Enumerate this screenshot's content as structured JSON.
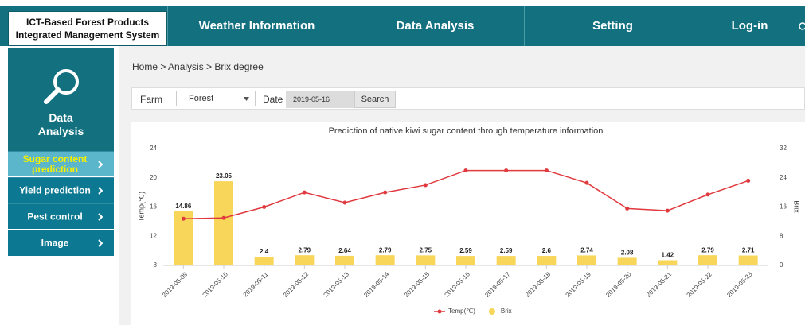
{
  "header": {
    "title_lines": [
      "ICT-Based Forest Products",
      "Integrated Management System"
    ],
    "nav": [
      "Weather Information",
      "Data Analysis",
      "Setting",
      "Log-in"
    ]
  },
  "sidebar": {
    "title_lines": [
      "Data",
      "Analysis"
    ],
    "menu": [
      "Sugar content prediction",
      "Yield prediction",
      "Pest control",
      "Image"
    ]
  },
  "breadcrumb": "Home > Analysis > Brix degree",
  "filter": {
    "farm_label": "Farm",
    "farm_value": "Forest",
    "date_label": "Date",
    "date_value": "2019-05-16",
    "button": "Search"
  },
  "chart_data": {
    "type": "combo",
    "title": "Prediction of native kiwi sugar content through temperature information",
    "categories": [
      "2019-05-09",
      "2019-05-10",
      "2019-05-11",
      "2019-05-12",
      "2019-05-13",
      "2019-05-14",
      "2019-05-15",
      "2019-05-16",
      "2019-05-17",
      "2019-05-18",
      "2019-05-19",
      "2019-05-20",
      "2019-05-21",
      "2019-05-22",
      "2019-05-23"
    ],
    "series": [
      {
        "name": "Temp(℃)",
        "type": "line",
        "color": "#e0393e",
        "values": [
          14.4,
          14.5,
          16.0,
          18.0,
          16.6,
          18.0,
          19.0,
          21.0,
          21.0,
          21.0,
          19.3,
          15.8,
          15.5,
          17.7,
          19.6
        ]
      },
      {
        "name": "Brix",
        "type": "bar",
        "axis": "y2",
        "color": "#f8d65a",
        "values": [
          14.86,
          23.05,
          2.4,
          2.79,
          2.64,
          2.79,
          2.75,
          2.59,
          2.59,
          2.6,
          2.74,
          2.08,
          1.42,
          2.79,
          2.71
        ]
      }
    ],
    "ylabel": "Temp(℃)",
    "y2label": "Brix",
    "ylim": [
      8,
      24
    ],
    "yticks": [
      8,
      12,
      16,
      20,
      24
    ],
    "y2lim": [
      0,
      32
    ],
    "y2ticks": [
      0,
      8,
      16,
      24,
      32
    ],
    "grid": false,
    "legend": "bottom"
  }
}
